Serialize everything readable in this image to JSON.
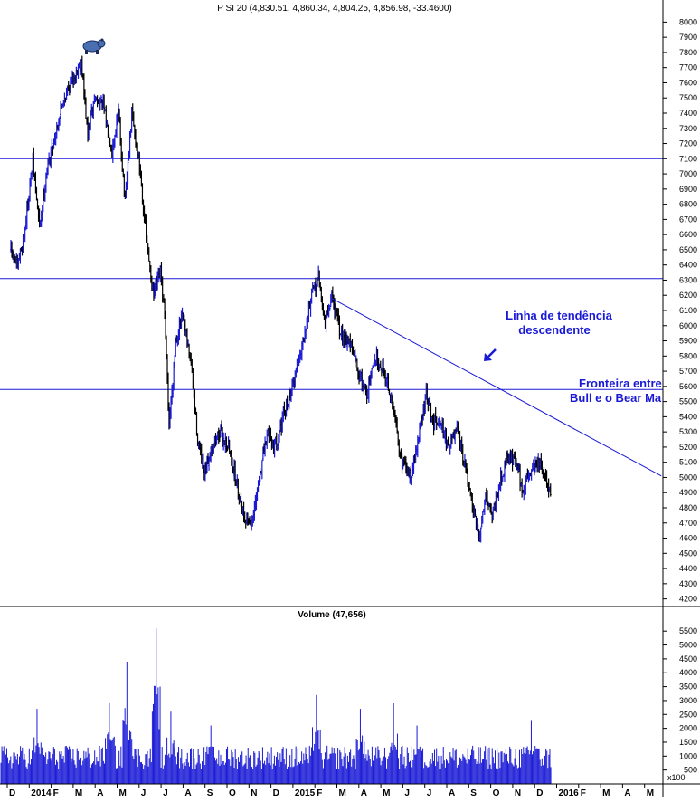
{
  "colors": {
    "up": "#1a1ad6",
    "down": "#000000",
    "level": "#1a1ad6",
    "volume": "#1a1ad6",
    "axis": "#000000"
  },
  "header": {
    "price_title": "P SI 20 (4,830.51, 4,860.34, 4,804.25, 4,856.98, -33.4600)",
    "volume_title": "Volume (47,656)",
    "volume_multiplier": "x100"
  },
  "annotations": {
    "trend_label_1": "Linha de tendência",
    "trend_label_2": "descendente",
    "border_label_1": "Fronteira entre",
    "border_label_2": "Bull e o Bear Ma",
    "arrow": "arrow-icon",
    "bear": "bear-icon"
  },
  "chart_data": [
    {
      "type": "ohlc",
      "title": "P SI 20 (4,830.51, 4,860.34, 4,804.25, 4,856.98, -33.4600)",
      "last_bar": {
        "open": 4830.51,
        "high": 4860.34,
        "low": 4804.25,
        "close": 4856.98,
        "change": -33.46
      },
      "x_ticks": [
        "D",
        "2014",
        "F",
        "M",
        "A",
        "M",
        "J",
        "J",
        "A",
        "S",
        "O",
        "N",
        "D",
        "2015",
        "F",
        "M",
        "A",
        "M",
        "J",
        "J",
        "A",
        "S",
        "O",
        "N",
        "D",
        "2016",
        "F",
        "M",
        "A",
        "M"
      ],
      "y_ticks": [
        4200,
        4300,
        4400,
        4500,
        4600,
        4700,
        4800,
        4900,
        5000,
        5100,
        5200,
        5300,
        5400,
        5500,
        5600,
        5700,
        5800,
        5900,
        6000,
        6100,
        6200,
        6300,
        6400,
        6500,
        6600,
        6700,
        6800,
        6900,
        7000,
        7100,
        7200,
        7300,
        7400,
        7500,
        7600,
        7700,
        7800,
        7900,
        8000
      ],
      "ylim": [
        4150,
        8050
      ],
      "horizontal_levels": [
        7100,
        6310,
        5580
      ],
      "trendline": {
        "from": {
          "month_index": 14.6,
          "value": 6180
        },
        "to": {
          "month_index": 29.6,
          "value": 5010
        }
      },
      "path_points": [
        [
          0.0,
          6500
        ],
        [
          0.3,
          6380
        ],
        [
          0.6,
          6600
        ],
        [
          1.0,
          7080
        ],
        [
          1.3,
          6650
        ],
        [
          1.6,
          7000
        ],
        [
          2.0,
          7250
        ],
        [
          2.4,
          7500
        ],
        [
          2.8,
          7620
        ],
        [
          3.2,
          7750
        ],
        [
          3.5,
          7250
        ],
        [
          3.8,
          7500
        ],
        [
          4.2,
          7450
        ],
        [
          4.6,
          7150
        ],
        [
          4.9,
          7400
        ],
        [
          5.2,
          6800
        ],
        [
          5.5,
          7400
        ],
        [
          5.9,
          7000
        ],
        [
          6.2,
          6500
        ],
        [
          6.5,
          6200
        ],
        [
          6.8,
          6350
        ],
        [
          7.0,
          6050
        ],
        [
          7.2,
          5350
        ],
        [
          7.5,
          5900
        ],
        [
          7.8,
          6050
        ],
        [
          8.2,
          5750
        ],
        [
          8.5,
          5250
        ],
        [
          8.8,
          5000
        ],
        [
          9.1,
          5200
        ],
        [
          9.5,
          5300
        ],
        [
          9.9,
          5200
        ],
        [
          10.3,
          4950
        ],
        [
          10.6,
          4750
        ],
        [
          11.0,
          4700
        ],
        [
          11.3,
          5000
        ],
        [
          11.7,
          5300
        ],
        [
          12.0,
          5200
        ],
        [
          12.4,
          5400
        ],
        [
          12.8,
          5600
        ],
        [
          13.2,
          5850
        ],
        [
          13.6,
          6150
        ],
        [
          14.0,
          6320
        ],
        [
          14.3,
          6000
        ],
        [
          14.6,
          6200
        ],
        [
          15.0,
          5950
        ],
        [
          15.4,
          5900
        ],
        [
          15.8,
          5700
        ],
        [
          16.2,
          5550
        ],
        [
          16.6,
          5800
        ],
        [
          17.0,
          5700
        ],
        [
          17.4,
          5450
        ],
        [
          17.8,
          5100
        ],
        [
          18.2,
          5000
        ],
        [
          18.6,
          5300
        ],
        [
          18.9,
          5550
        ],
        [
          19.2,
          5350
        ],
        [
          19.5,
          5400
        ],
        [
          19.9,
          5200
        ],
        [
          20.3,
          5300
        ],
        [
          20.7,
          5050
        ],
        [
          21.0,
          4800
        ],
        [
          21.3,
          4600
        ],
        [
          21.6,
          4900
        ],
        [
          21.9,
          4750
        ],
        [
          22.2,
          4950
        ],
        [
          22.6,
          5150
        ],
        [
          23.0,
          5100
        ],
        [
          23.3,
          4900
        ],
        [
          23.6,
          5050
        ],
        [
          24.0,
          5100
        ],
        [
          24.3,
          5000
        ],
        [
          24.6,
          4900
        ]
      ],
      "volume": {
        "title": "Volume (47,656)",
        "y_ticks": [
          500,
          1000,
          1500,
          2000,
          2500,
          3000,
          3500,
          4000,
          4500,
          5000,
          5500
        ],
        "ylim": [
          0,
          5800
        ],
        "multiplier": "x100",
        "baseline": 1150,
        "spikes": [
          [
            1.2,
            2700
          ],
          [
            4.5,
            2900
          ],
          [
            5.3,
            4400
          ],
          [
            6.6,
            5600
          ],
          [
            7.3,
            2600
          ],
          [
            9.1,
            2100
          ],
          [
            13.9,
            3200
          ],
          [
            15.9,
            2700
          ],
          [
            17.4,
            2900
          ],
          [
            18.5,
            2100
          ],
          [
            23.7,
            2300
          ]
        ]
      }
    }
  ]
}
